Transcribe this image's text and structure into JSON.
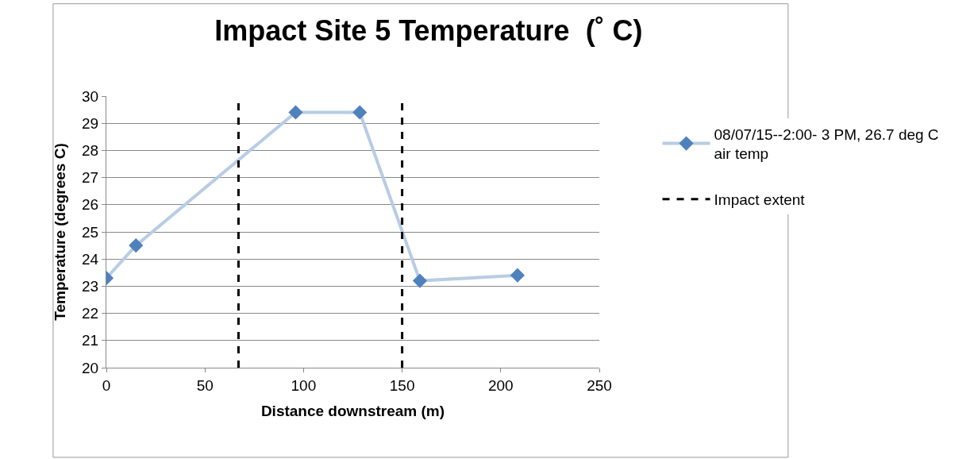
{
  "chart_data": {
    "type": "line",
    "title": "Impact Site 5 Temperature  (˚ C)",
    "xlabel": "Distance downstream (m)",
    "ylabel": "Temperature (degrees C)",
    "x": [
      0,
      15,
      96,
      128.5,
      159,
      208.5
    ],
    "series": [
      {
        "name": "08/07/15--2:00- 3 PM, 26.7 deg C air temp",
        "color": "#4f81bd",
        "values": [
          23.3,
          24.5,
          29.4,
          29.4,
          23.2,
          23.4
        ]
      }
    ],
    "ref_lines": [
      {
        "axis": "x",
        "value": 67,
        "label": "Impact extent",
        "color": "#000000",
        "line_style": "dashed"
      },
      {
        "axis": "x",
        "value": 150,
        "color": "#000000",
        "line_style": "dashed"
      }
    ],
    "xlim": [
      0,
      250
    ],
    "xticks": [
      0,
      50,
      100,
      150,
      200,
      250
    ],
    "ylim": [
      20,
      30
    ],
    "yticks": [
      20,
      21,
      22,
      23,
      24,
      25,
      26,
      27,
      28,
      29,
      30
    ],
    "grid": "y",
    "legend": "right",
    "marker": "diamond",
    "line_style": "solid"
  }
}
